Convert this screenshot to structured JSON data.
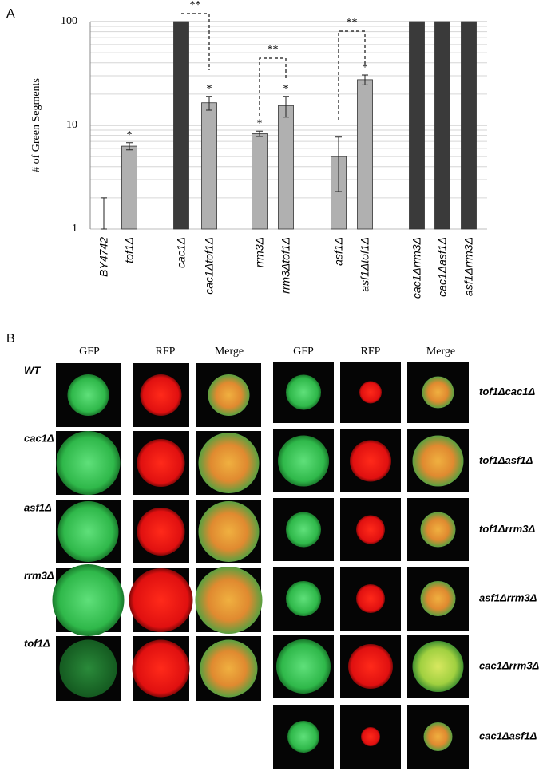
{
  "chart_data": {
    "type": "bar",
    "panel_label": "A",
    "ylabel": "# of Green Segments",
    "categories": [
      "BY4742",
      "tof1Δ",
      "cac1Δ",
      "cac1Δtof1Δ",
      "rrm3Δ",
      "rrm3Δtof1Δ",
      "asf1Δ",
      "asf1Δtof1Δ",
      "cac1Δrrm3Δ",
      "cac1Δasf1Δ",
      "asf1Δrrm3Δ"
    ],
    "values": [
      1,
      6.3,
      100,
      16.5,
      8.3,
      15.5,
      5,
      27.5,
      100,
      100,
      100
    ],
    "errors": [
      1,
      0.5,
      null,
      2.5,
      0.5,
      3.5,
      2.7,
      3,
      null,
      null,
      null
    ],
    "colors": [
      "#b0b0b0",
      "#b0b0b0",
      "#3a3a3a",
      "#b0b0b0",
      "#b0b0b0",
      "#b0b0b0",
      "#b0b0b0",
      "#b0b0b0",
      "#3a3a3a",
      "#3a3a3a",
      "#3a3a3a"
    ],
    "significance": [
      null,
      "*",
      null,
      "*",
      "*",
      "*",
      null,
      "*",
      null,
      null,
      null
    ],
    "comparisons": [
      {
        "pair": [
          "cac1Δ",
          "cac1Δtof1Δ"
        ],
        "label": "**"
      },
      {
        "pair": [
          "rrm3Δ",
          "rrm3Δtof1Δ"
        ],
        "label": "**"
      },
      {
        "pair": [
          "asf1Δ",
          "asf1Δtof1Δ"
        ],
        "label": "**"
      }
    ],
    "log_scale": true,
    "ylim": [
      1,
      100
    ],
    "yticks": [
      1,
      10,
      100
    ],
    "minor_yticks": [
      2,
      3,
      4,
      5,
      6,
      7,
      8,
      9,
      20,
      30,
      40,
      50,
      60,
      70,
      80,
      90
    ],
    "grid": true
  },
  "panel_b": {
    "label": "B",
    "left": {
      "headers": [
        "GFP",
        "RFP",
        "Merge"
      ],
      "rows": [
        "WT",
        "cac1Δ",
        "asf1Δ",
        "rrm3Δ",
        "tof1Δ"
      ]
    },
    "right": {
      "headers": [
        "GFP",
        "RFP",
        "Merge"
      ],
      "rows": [
        "tof1Δcac1Δ",
        "tof1Δasf1Δ",
        "tof1Δrrm3Δ",
        "asf1Δrrm3Δ",
        "cac1Δrrm3Δ",
        "cac1Δasf1Δ"
      ]
    }
  }
}
